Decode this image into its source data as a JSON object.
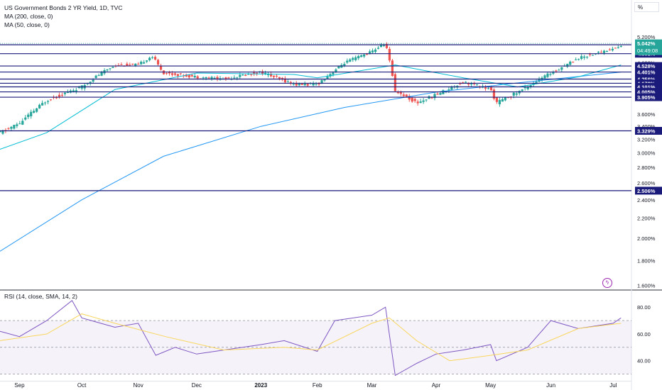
{
  "legend": {
    "symbol": "US Government Bonds 2 YR Yield, 1D, TVC",
    "ma200": "MA (200, close, 0)",
    "ma50": "MA (50, close, 0)",
    "rsi": "RSI (14, close, SMA, 14, 2)"
  },
  "axis_unit_label": "%",
  "flash_icon": "lightning-icon",
  "chart_data": [
    {
      "type": "candlestick",
      "title": "US Government Bonds 2 YR Yield, 1D, TVC",
      "yscale": "log",
      "ylim": [
        1.58,
        5.45
      ],
      "y_ticks": [
        "5.200%",
        "4.600%",
        "3.600%",
        "3.400%",
        "3.200%",
        "3.000%",
        "2.800%",
        "2.600%",
        "2.400%",
        "2.200%",
        "2.000%",
        "1.800%",
        "1.600%"
      ],
      "y_tick_values": [
        5.2,
        4.6,
        3.6,
        3.4,
        3.2,
        3.0,
        2.8,
        2.6,
        2.4,
        2.2,
        2.0,
        1.8,
        1.6
      ],
      "x_ticks": [
        "Sep",
        "Oct",
        "Nov",
        "Dec",
        "2023",
        "Feb",
        "Mar",
        "Apr",
        "May",
        "Jun",
        "Jul"
      ],
      "x_tick_dates": [
        "2022-09-01",
        "2022-10-03",
        "2022-11-01",
        "2022-12-01",
        "2023-01-03",
        "2023-02-01",
        "2023-03-01",
        "2023-04-03",
        "2023-05-01",
        "2023-06-01",
        "2023-07-03"
      ],
      "x_range": [
        "2022-08-22",
        "2023-07-12"
      ],
      "horizontal_levels": [
        {
          "label": "5.008%",
          "value": 5.008
        },
        {
          "label": "4.801%",
          "value": 4.801
        },
        {
          "label": "4.528%",
          "value": 4.528
        },
        {
          "label": "4.401%",
          "value": 4.401
        },
        {
          "label": "4.256%",
          "value": 4.256
        },
        {
          "label": "4.172%",
          "value": 4.172
        },
        {
          "label": "4.101%",
          "value": 4.101
        },
        {
          "label": "4.005%",
          "value": 4.005
        },
        {
          "label": "3.905%",
          "value": 3.905
        },
        {
          "label": "3.329%",
          "value": 3.329
        },
        {
          "label": "2.506%",
          "value": 2.506
        }
      ],
      "last_price": {
        "label": "5.042%",
        "value": 5.042,
        "countdown": "04:49:08"
      },
      "close_series": {
        "dates": [
          "2022-08-22",
          "2022-09-01",
          "2022-09-15",
          "2022-10-03",
          "2022-10-10",
          "2022-10-20",
          "2022-11-01",
          "2022-11-08",
          "2022-11-14",
          "2022-12-01",
          "2022-12-15",
          "2023-01-03",
          "2023-01-20",
          "2023-02-01",
          "2023-02-15",
          "2023-03-01",
          "2023-03-08",
          "2023-03-13",
          "2023-03-24",
          "2023-04-03",
          "2023-04-17",
          "2023-05-01",
          "2023-05-04",
          "2023-05-15",
          "2023-06-01",
          "2023-06-15",
          "2023-07-03",
          "2023-07-07"
        ],
        "values": [
          3.3,
          3.45,
          3.85,
          4.1,
          4.3,
          4.55,
          4.55,
          4.75,
          4.38,
          4.3,
          4.26,
          4.4,
          4.15,
          4.15,
          4.6,
          4.85,
          5.06,
          4.03,
          3.8,
          3.95,
          4.2,
          4.05,
          3.8,
          4.0,
          4.38,
          4.7,
          4.92,
          4.97
        ]
      },
      "series": [
        {
          "name": "MA (200, close, 0)",
          "color": "#2196f3",
          "dates": [
            "2022-08-22",
            "2022-10-03",
            "2022-11-14",
            "2023-01-03",
            "2023-02-15",
            "2023-04-03",
            "2023-05-15",
            "2023-07-07"
          ],
          "values": [
            1.88,
            2.4,
            2.95,
            3.4,
            3.72,
            4.0,
            4.18,
            4.4
          ]
        },
        {
          "name": "MA (50, close, 0)",
          "color": "#00bcd4",
          "dates": [
            "2022-08-22",
            "2022-09-15",
            "2022-10-20",
            "2022-12-01",
            "2023-01-20",
            "2023-02-01",
            "2023-03-13",
            "2023-04-17",
            "2023-05-15",
            "2023-06-15",
            "2023-07-07"
          ],
          "values": [
            3.05,
            3.3,
            4.05,
            4.38,
            4.35,
            4.28,
            4.55,
            4.28,
            4.1,
            4.3,
            4.55
          ]
        }
      ],
      "colors": {
        "up": "#26a69a",
        "down": "#ef5350",
        "level": "#1a1a7a"
      }
    },
    {
      "type": "line",
      "title": "RSI (14, close, SMA, 14, 2)",
      "ylim": [
        25,
        87
      ],
      "y_ticks": [
        "80.00",
        "60.00",
        "40.00"
      ],
      "y_tick_values": [
        80,
        60,
        40
      ],
      "band": [
        30,
        70
      ],
      "mid": 50,
      "series": [
        {
          "name": "RSI",
          "color": "#7e57c2",
          "dates": [
            "2022-08-22",
            "2022-09-01",
            "2022-09-15",
            "2022-09-28",
            "2022-10-03",
            "2022-10-20",
            "2022-11-01",
            "2022-11-10",
            "2022-11-20",
            "2022-12-01",
            "2022-12-15",
            "2023-01-03",
            "2023-01-15",
            "2023-02-01",
            "2023-02-10",
            "2023-03-01",
            "2023-03-08",
            "2023-03-13",
            "2023-03-24",
            "2023-04-03",
            "2023-04-17",
            "2023-05-01",
            "2023-05-04",
            "2023-05-20",
            "2023-06-01",
            "2023-06-15",
            "2023-07-03",
            "2023-07-07"
          ],
          "values": [
            62,
            58,
            70,
            85,
            72,
            65,
            68,
            44,
            50,
            45,
            48,
            52,
            55,
            47,
            70,
            74,
            80,
            29,
            38,
            45,
            48,
            52,
            40,
            50,
            70,
            64,
            68,
            72
          ]
        },
        {
          "name": "SMA",
          "color": "#f9d65b",
          "dates": [
            "2022-08-22",
            "2022-09-15",
            "2022-10-03",
            "2022-10-20",
            "2022-11-15",
            "2022-12-15",
            "2023-01-15",
            "2023-02-01",
            "2023-03-01",
            "2023-03-10",
            "2023-03-24",
            "2023-04-10",
            "2023-05-01",
            "2023-05-20",
            "2023-06-15",
            "2023-07-07"
          ],
          "values": [
            55,
            60,
            75,
            68,
            58,
            48,
            50,
            48,
            68,
            72,
            55,
            40,
            44,
            48,
            64,
            68
          ]
        }
      ]
    }
  ]
}
